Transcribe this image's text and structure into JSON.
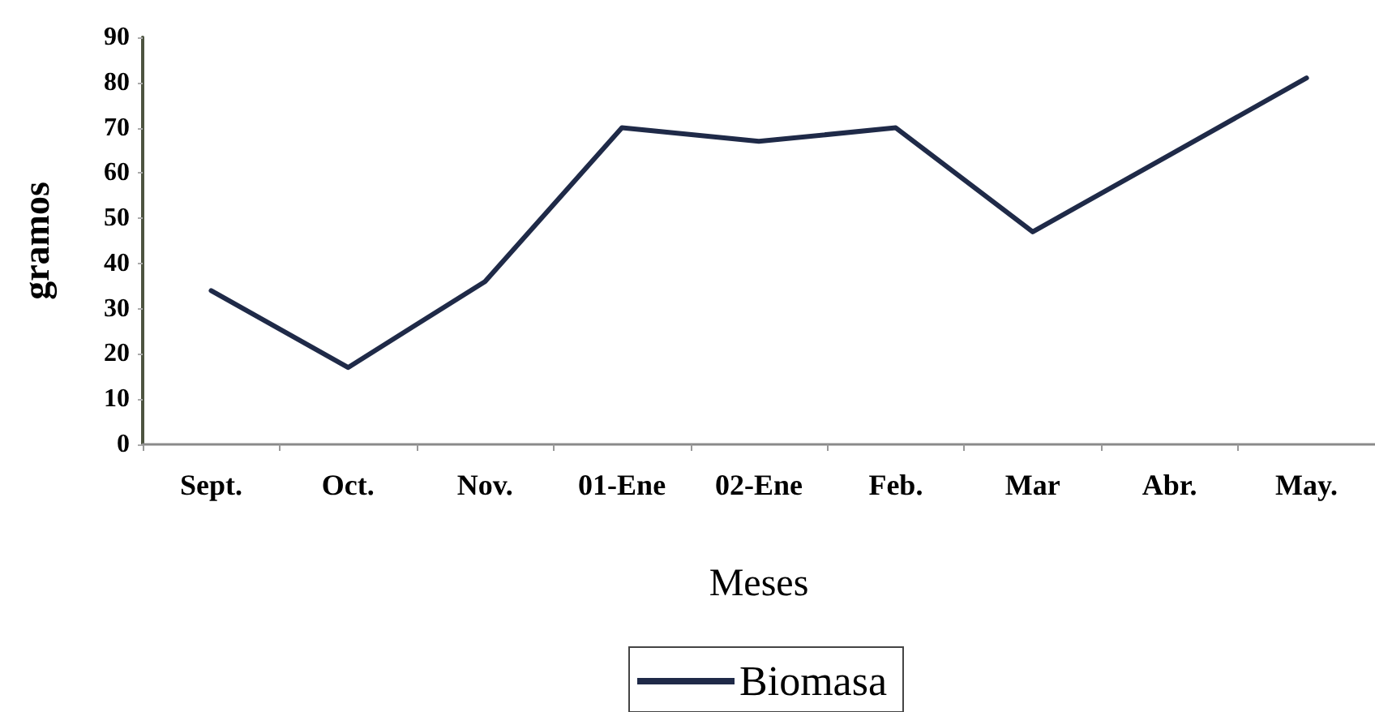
{
  "chart_data": {
    "type": "line",
    "xlabel": "Meses",
    "ylabel": "gramos",
    "categories": [
      "Sept.",
      "Oct.",
      "Nov.",
      "01-Ene",
      "02-Ene",
      "Feb.",
      "Mar",
      "Abr.",
      "May."
    ],
    "series": [
      {
        "name": "Biomasa",
        "color": "#1f2a48",
        "values": [
          34,
          17,
          36,
          70,
          67,
          70,
          47,
          64,
          81
        ]
      }
    ],
    "ylim": [
      0,
      90
    ],
    "yticks": [
      0,
      10,
      20,
      30,
      40,
      50,
      60,
      70,
      80,
      90
    ],
    "grid": false,
    "legend": "bottom",
    "marker": "none",
    "line_style": "solid"
  }
}
